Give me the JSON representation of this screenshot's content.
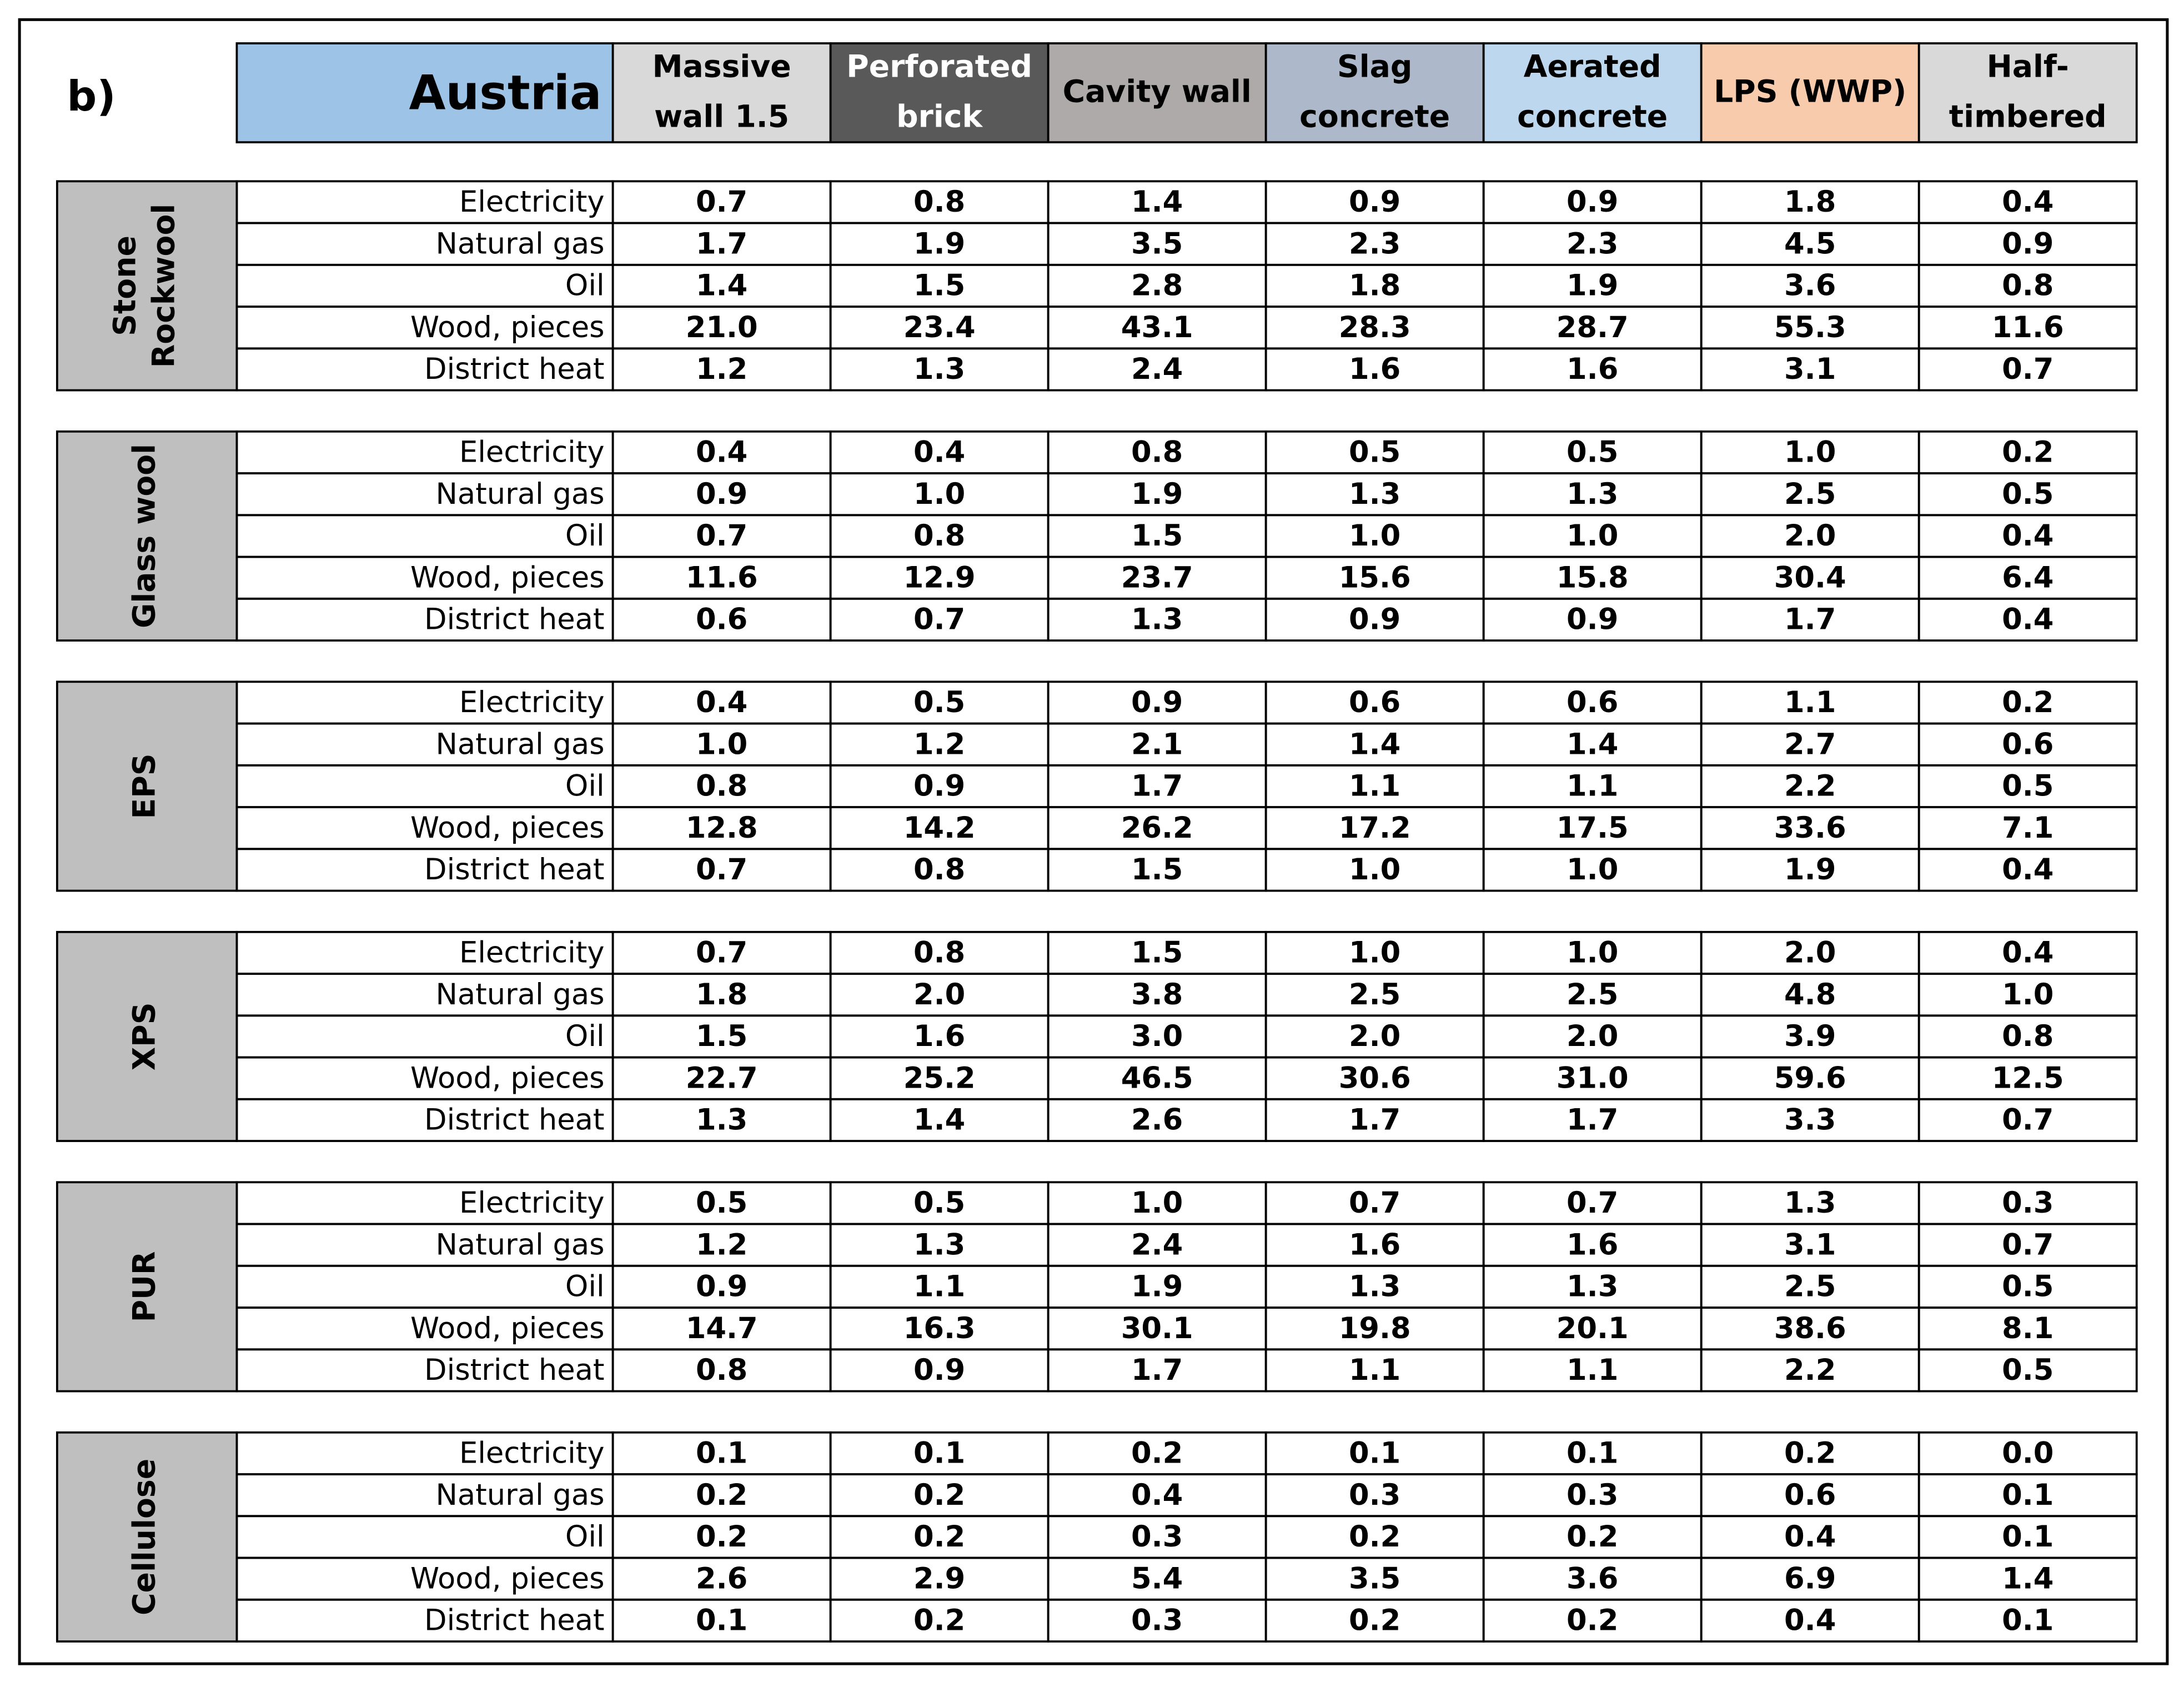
{
  "label": "b)",
  "header": {
    "title": "Austria",
    "columns": [
      [
        "Massive",
        "wall 1.5"
      ],
      [
        "Perforated",
        "brick"
      ],
      [
        "Cavity wall"
      ],
      [
        "Slag",
        "concrete"
      ],
      [
        "Aerated",
        "concrete"
      ],
      [
        "LPS (WWP)"
      ],
      [
        "Half-",
        "timbered"
      ]
    ]
  },
  "groups": [
    {
      "name": [
        "Stone",
        "Rockwool"
      ],
      "rows": [
        {
          "label": "Electricity",
          "values": [
            "0.7",
            "0.8",
            "1.4",
            "0.9",
            "0.9",
            "1.8",
            "0.4"
          ]
        },
        {
          "label": "Natural gas",
          "values": [
            "1.7",
            "1.9",
            "3.5",
            "2.3",
            "2.3",
            "4.5",
            "0.9"
          ]
        },
        {
          "label": "Oil",
          "values": [
            "1.4",
            "1.5",
            "2.8",
            "1.8",
            "1.9",
            "3.6",
            "0.8"
          ]
        },
        {
          "label": "Wood, pieces",
          "values": [
            "21.0",
            "23.4",
            "43.1",
            "28.3",
            "28.7",
            "55.3",
            "11.6"
          ]
        },
        {
          "label": "District heat",
          "values": [
            "1.2",
            "1.3",
            "2.4",
            "1.6",
            "1.6",
            "3.1",
            "0.7"
          ]
        }
      ]
    },
    {
      "name": [
        "Glass wool"
      ],
      "rows": [
        {
          "label": "Electricity",
          "values": [
            "0.4",
            "0.4",
            "0.8",
            "0.5",
            "0.5",
            "1.0",
            "0.2"
          ]
        },
        {
          "label": "Natural gas",
          "values": [
            "0.9",
            "1.0",
            "1.9",
            "1.3",
            "1.3",
            "2.5",
            "0.5"
          ]
        },
        {
          "label": "Oil",
          "values": [
            "0.7",
            "0.8",
            "1.5",
            "1.0",
            "1.0",
            "2.0",
            "0.4"
          ]
        },
        {
          "label": "Wood, pieces",
          "values": [
            "11.6",
            "12.9",
            "23.7",
            "15.6",
            "15.8",
            "30.4",
            "6.4"
          ]
        },
        {
          "label": "District heat",
          "values": [
            "0.6",
            "0.7",
            "1.3",
            "0.9",
            "0.9",
            "1.7",
            "0.4"
          ]
        }
      ]
    },
    {
      "name": [
        "EPS"
      ],
      "rows": [
        {
          "label": "Electricity",
          "values": [
            "0.4",
            "0.5",
            "0.9",
            "0.6",
            "0.6",
            "1.1",
            "0.2"
          ]
        },
        {
          "label": "Natural gas",
          "values": [
            "1.0",
            "1.2",
            "2.1",
            "1.4",
            "1.4",
            "2.7",
            "0.6"
          ]
        },
        {
          "label": "Oil",
          "values": [
            "0.8",
            "0.9",
            "1.7",
            "1.1",
            "1.1",
            "2.2",
            "0.5"
          ]
        },
        {
          "label": "Wood, pieces",
          "values": [
            "12.8",
            "14.2",
            "26.2",
            "17.2",
            "17.5",
            "33.6",
            "7.1"
          ]
        },
        {
          "label": "District heat",
          "values": [
            "0.7",
            "0.8",
            "1.5",
            "1.0",
            "1.0",
            "1.9",
            "0.4"
          ]
        }
      ]
    },
    {
      "name": [
        "XPS"
      ],
      "rows": [
        {
          "label": "Electricity",
          "values": [
            "0.7",
            "0.8",
            "1.5",
            "1.0",
            "1.0",
            "2.0",
            "0.4"
          ]
        },
        {
          "label": "Natural gas",
          "values": [
            "1.8",
            "2.0",
            "3.8",
            "2.5",
            "2.5",
            "4.8",
            "1.0"
          ]
        },
        {
          "label": "Oil",
          "values": [
            "1.5",
            "1.6",
            "3.0",
            "2.0",
            "2.0",
            "3.9",
            "0.8"
          ]
        },
        {
          "label": "Wood, pieces",
          "values": [
            "22.7",
            "25.2",
            "46.5",
            "30.6",
            "31.0",
            "59.6",
            "12.5"
          ]
        },
        {
          "label": "District heat",
          "values": [
            "1.3",
            "1.4",
            "2.6",
            "1.7",
            "1.7",
            "3.3",
            "0.7"
          ]
        }
      ]
    },
    {
      "name": [
        "PUR"
      ],
      "rows": [
        {
          "label": "Electricity",
          "values": [
            "0.5",
            "0.5",
            "1.0",
            "0.7",
            "0.7",
            "1.3",
            "0.3"
          ]
        },
        {
          "label": "Natural gas",
          "values": [
            "1.2",
            "1.3",
            "2.4",
            "1.6",
            "1.6",
            "3.1",
            "0.7"
          ]
        },
        {
          "label": "Oil",
          "values": [
            "0.9",
            "1.1",
            "1.9",
            "1.3",
            "1.3",
            "2.5",
            "0.5"
          ]
        },
        {
          "label": "Wood, pieces",
          "values": [
            "14.7",
            "16.3",
            "30.1",
            "19.8",
            "20.1",
            "38.6",
            "8.1"
          ]
        },
        {
          "label": "District heat",
          "values": [
            "0.8",
            "0.9",
            "1.7",
            "1.1",
            "1.1",
            "2.2",
            "0.5"
          ]
        }
      ]
    },
    {
      "name": [
        "Cellulose"
      ],
      "rows": [
        {
          "label": "Electricity",
          "values": [
            "0.1",
            "0.1",
            "0.2",
            "0.1",
            "0.1",
            "0.2",
            "0.0"
          ]
        },
        {
          "label": "Natural gas",
          "values": [
            "0.2",
            "0.2",
            "0.4",
            "0.3",
            "0.3",
            "0.6",
            "0.1"
          ]
        },
        {
          "label": "Oil",
          "values": [
            "0.2",
            "0.2",
            "0.3",
            "0.2",
            "0.2",
            "0.4",
            "0.1"
          ]
        },
        {
          "label": "Wood, pieces",
          "values": [
            "2.6",
            "2.9",
            "5.4",
            "3.5",
            "3.6",
            "6.9",
            "1.4"
          ]
        },
        {
          "label": "District heat",
          "values": [
            "0.1",
            "0.2",
            "0.3",
            "0.2",
            "0.2",
            "0.4",
            "0.1"
          ]
        }
      ]
    }
  ]
}
